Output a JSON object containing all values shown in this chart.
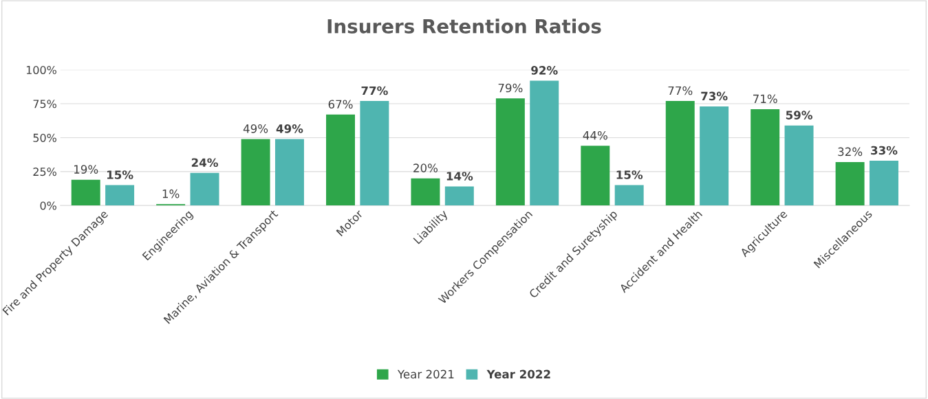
{
  "chart_data": {
    "type": "bar",
    "title": "Insurers Retention Ratios",
    "categories": [
      "Fire and Property Damage",
      "Engineering",
      "Marine, Aviation & Transport",
      "Motor",
      "Liability",
      "Workers Compensation",
      "Credit and Suretyship",
      "Accident and Health",
      "Agriculture",
      "Miscellaneous"
    ],
    "series": [
      {
        "name": "Year 2021",
        "color": "#2ea64a",
        "values": [
          19,
          1,
          49,
          67,
          20,
          79,
          44,
          77,
          71,
          32
        ],
        "value_labels": [
          "19%",
          "1%",
          "49%",
          "67%",
          "20%",
          "79%",
          "44%",
          "77%",
          "71%",
          "32%"
        ]
      },
      {
        "name": "Year 2022",
        "color": "#4fb5b0",
        "values": [
          15,
          24,
          49,
          77,
          14,
          92,
          15,
          73,
          59,
          33
        ],
        "value_labels": [
          "15%",
          "24%",
          "49%",
          "77%",
          "14%",
          "92%",
          "15%",
          "73%",
          "59%",
          "33%"
        ]
      }
    ],
    "ylim": [
      0,
      100
    ],
    "yticks": [
      {
        "value": 0,
        "label": "0%"
      },
      {
        "value": 25,
        "label": "25%"
      },
      {
        "value": 50,
        "label": "50%"
      },
      {
        "value": 75,
        "label": "75%"
      },
      {
        "value": 100,
        "label": "100%"
      }
    ],
    "grid": "y",
    "legend": "bottom"
  }
}
